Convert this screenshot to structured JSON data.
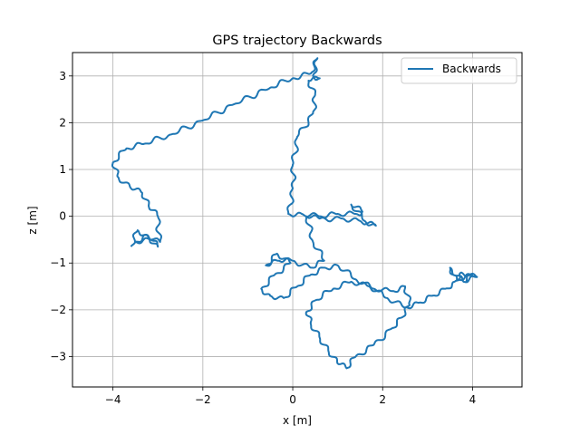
{
  "chart_data": {
    "type": "line",
    "title": "GPS trajectory Backwards",
    "xlabel": "x [m]",
    "ylabel": "z [m]",
    "xlim": [
      -4.9,
      5.1
    ],
    "ylim": [
      -3.65,
      3.5
    ],
    "xticks": [
      -4,
      -2,
      0,
      2,
      4
    ],
    "xtick_labels": [
      "−4",
      "−2",
      "0",
      "2",
      "4"
    ],
    "yticks": [
      -3,
      -2,
      -1,
      0,
      1,
      2,
      3
    ],
    "ytick_labels": [
      "−3",
      "−2",
      "−1",
      "0",
      "1",
      "2",
      "3"
    ],
    "grid": true,
    "legend_position": "top-right",
    "series": [
      {
        "name": "Backwards",
        "color": "#1f77b4",
        "x": [
          -3.6,
          -3.45,
          -3.2,
          -3.0,
          -3.15,
          -3.5,
          -3.25,
          -2.95,
          -3.0,
          -3.2,
          -3.35,
          -3.6,
          -3.9,
          -4.0,
          -3.7,
          -3.3,
          -2.7,
          -2.0,
          -1.3,
          -0.5,
          0.0,
          0.4,
          0.55,
          0.45,
          0.6,
          0.35,
          0.5,
          0.45,
          0.1,
          0.0,
          0.0,
          -0.1,
          0.2,
          0.6,
          1.0,
          1.4,
          1.55,
          1.3,
          1.6,
          1.85,
          1.5,
          1.1,
          0.6,
          0.3,
          0.45,
          0.7,
          0.4,
          0.0,
          -0.3,
          -0.6,
          -0.35,
          -0.05,
          -0.4,
          -0.7,
          -0.5,
          -0.2,
          0.1,
          0.4,
          0.7,
          1.0,
          1.4,
          1.8,
          2.2,
          2.5,
          2.6,
          2.45,
          2.2,
          1.8,
          1.4,
          1.2,
          1.0,
          0.8,
          0.6,
          0.4,
          0.3,
          0.5,
          0.9,
          1.3,
          1.7,
          2.1,
          2.5,
          2.8,
          3.1,
          3.4,
          3.6,
          3.75,
          4.1,
          3.8,
          3.5,
          3.65,
          4.0,
          3.85
        ],
        "y": [
          -0.65,
          -0.3,
          -0.45,
          -0.65,
          -0.5,
          -0.55,
          -0.4,
          -0.55,
          0.0,
          0.2,
          0.5,
          0.6,
          0.85,
          1.15,
          1.45,
          1.55,
          1.75,
          2.05,
          2.4,
          2.75,
          2.95,
          3.05,
          3.38,
          3.0,
          2.95,
          2.9,
          2.6,
          2.2,
          1.7,
          1.1,
          0.6,
          0.05,
          0.05,
          0.0,
          0.05,
          0.05,
          0.1,
          0.25,
          -0.1,
          -0.2,
          -0.1,
          -0.05,
          -0.05,
          0.0,
          -0.55,
          -0.95,
          -1.1,
          -0.95,
          -0.95,
          -1.05,
          -0.8,
          -1.0,
          -1.25,
          -1.55,
          -1.7,
          -1.75,
          -1.5,
          -1.25,
          -1.1,
          -1.05,
          -1.35,
          -1.55,
          -1.6,
          -1.5,
          -1.9,
          -2.15,
          -2.4,
          -2.75,
          -3.0,
          -3.25,
          -3.15,
          -2.9,
          -2.6,
          -2.3,
          -2.05,
          -1.8,
          -1.55,
          -1.4,
          -1.5,
          -1.75,
          -1.95,
          -1.85,
          -1.7,
          -1.55,
          -1.4,
          -1.2,
          -1.3,
          -1.4,
          -1.1,
          -1.35,
          -1.25,
          -1.4
        ]
      }
    ]
  }
}
